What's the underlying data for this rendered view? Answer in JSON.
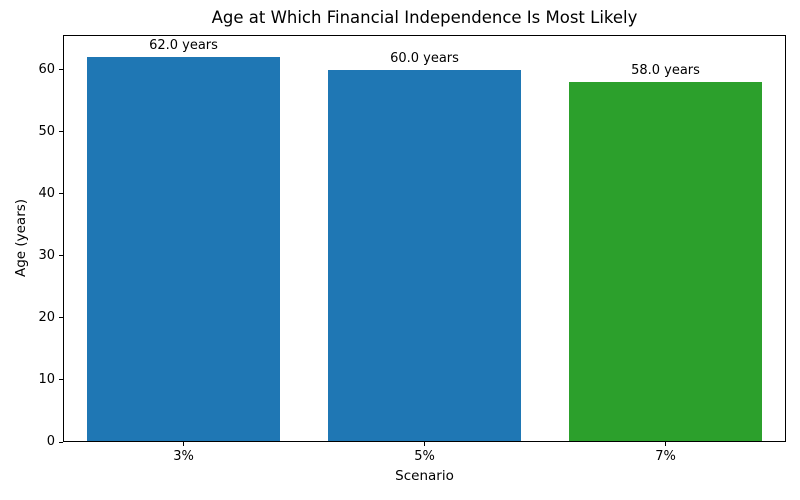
{
  "chart_data": {
    "type": "bar",
    "title": "Age at Which Financial Independence Is Most Likely",
    "xlabel": "Scenario",
    "ylabel": "Age (years)",
    "categories": [
      "3%",
      "5%",
      "7%"
    ],
    "values": [
      62.0,
      60.0,
      58.0
    ],
    "bar_labels": [
      "62.0 years",
      "60.0 years",
      "58.0 years"
    ],
    "bar_colors": [
      "#1f77b4",
      "#1f77b4",
      "#2ca02c"
    ],
    "yticks": [
      0,
      10,
      20,
      30,
      40,
      50,
      60
    ],
    "ylim": [
      0,
      65.6
    ],
    "bar_width_fraction": 0.8,
    "grid": false,
    "legend_position": "none"
  },
  "colors": {
    "text": "#000000",
    "spine": "#000000",
    "background": "#ffffff"
  }
}
